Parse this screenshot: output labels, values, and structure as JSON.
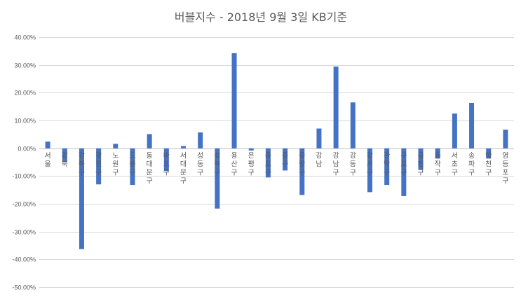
{
  "chart_data": {
    "type": "bar",
    "title": "버블지수 - 2018년 9월 3일 KB기준",
    "xlabel": "",
    "ylabel": "",
    "ylim": [
      -50,
      40
    ],
    "ytick_step": 10,
    "ytick_labels": [
      "40.00%",
      "30.00%",
      "20.00%",
      "10.00%",
      "0.00%",
      "-10.00%",
      "-20.00%",
      "-30.00%",
      "-40.00%",
      "-50.00%"
    ],
    "grid": true,
    "legend": "none",
    "bar_color": "#4472C4",
    "categories": [
      "서울",
      "강북",
      "강북구",
      "광진구",
      "노원구",
      "도봉구",
      "동대문구",
      "마포구",
      "서대문구",
      "성동구",
      "성북구",
      "용산구",
      "은평구",
      "종로구",
      "중구",
      "중랑구",
      "강남",
      "강남구",
      "강동구",
      "강서구",
      "관악구",
      "구로구",
      "금천구",
      "동작구",
      "서초구",
      "송파구",
      "양천구",
      "영등포구"
    ],
    "values": [
      2.4,
      -4.9,
      -36.3,
      -13.0,
      1.6,
      -13.2,
      5.1,
      -8.2,
      0.8,
      5.7,
      -21.7,
      34.2,
      -0.8,
      -10.5,
      -8.0,
      -16.8,
      7.1,
      29.4,
      16.5,
      -15.8,
      -13.2,
      -17.2,
      -7.8,
      -3.7,
      12.5,
      16.3,
      -3.7,
      6.7
    ]
  }
}
